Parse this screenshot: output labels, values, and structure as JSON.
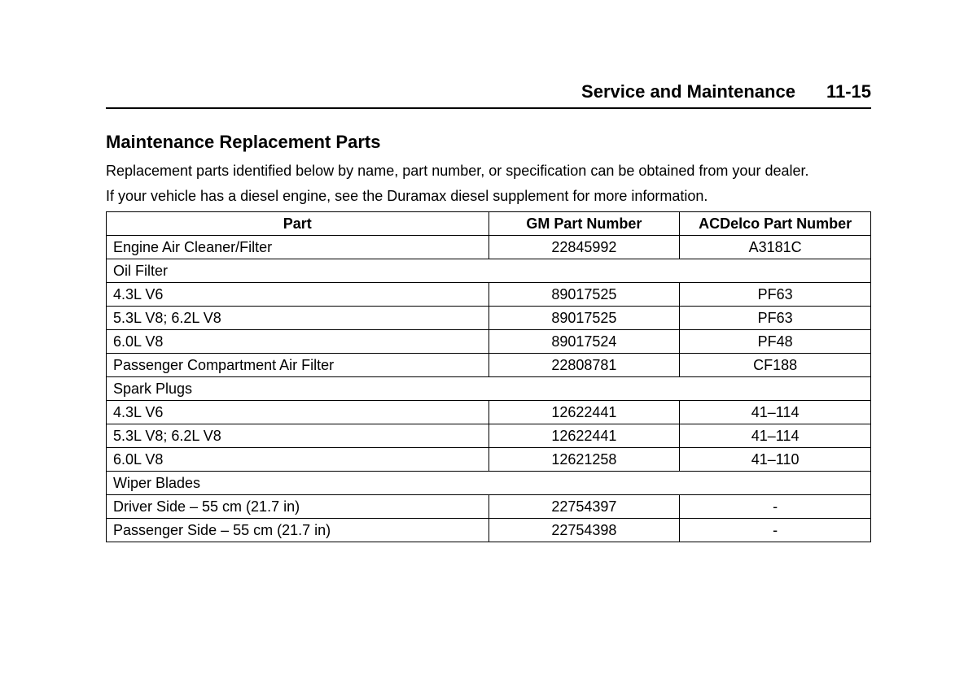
{
  "header": {
    "title": "Service and Maintenance",
    "page": "11-15"
  },
  "section": {
    "title": "Maintenance Replacement Parts",
    "intro1": "Replacement parts identified below by name, part number, or specification can be obtained from your dealer.",
    "intro2": "If your vehicle has a diesel engine, see the Duramax diesel supplement for more information."
  },
  "table": {
    "columns": {
      "part": "Part",
      "gm": "GM Part Number",
      "ac": "ACDelco Part Number"
    },
    "rows": [
      {
        "type": "item",
        "part": "Engine Air Cleaner/Filter",
        "gm": "22845992",
        "ac": "A3181C"
      },
      {
        "type": "group",
        "part": "Oil Filter"
      },
      {
        "type": "sub",
        "part": "4.3L V6",
        "gm": "89017525",
        "ac": "PF63"
      },
      {
        "type": "sub",
        "part": "5.3L V8; 6.2L V8",
        "gm": "89017525",
        "ac": "PF63"
      },
      {
        "type": "sub",
        "part": "6.0L V8",
        "gm": "89017524",
        "ac": "PF48"
      },
      {
        "type": "item",
        "part": "Passenger Compartment Air Filter",
        "gm": "22808781",
        "ac": "CF188"
      },
      {
        "type": "group",
        "part": "Spark Plugs"
      },
      {
        "type": "sub",
        "part": "4.3L V6",
        "gm": "12622441",
        "ac": "41–114"
      },
      {
        "type": "sub",
        "part": "5.3L V8; 6.2L V8",
        "gm": "12622441",
        "ac": "41–114"
      },
      {
        "type": "sub",
        "part": "6.0L V8",
        "gm": "12621258",
        "ac": "41–110"
      },
      {
        "type": "group",
        "part": "Wiper Blades"
      },
      {
        "type": "sub",
        "part": "Driver Side – 55 cm (21.7 in)",
        "gm": "22754397",
        "ac": "-"
      },
      {
        "type": "sub",
        "part": "Passenger Side – 55 cm (21.7 in)",
        "gm": "22754398",
        "ac": "-"
      }
    ]
  }
}
